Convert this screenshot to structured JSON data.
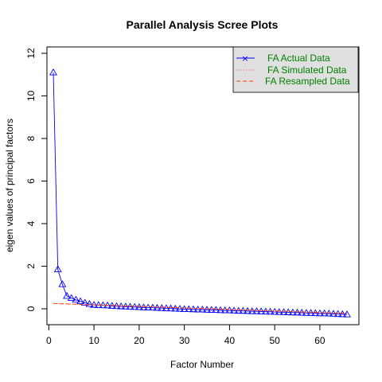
{
  "chart_data": {
    "type": "line",
    "title": "Parallel Analysis Scree Plots",
    "xlabel": "Factor Number",
    "ylabel": "eigen values of principal factors",
    "xlim": [
      1,
      66
    ],
    "ylim": [
      -0.45,
      12.3
    ],
    "xticks": [
      0,
      10,
      20,
      30,
      40,
      50,
      60
    ],
    "yticks": [
      0,
      2,
      4,
      6,
      8,
      10,
      12
    ],
    "legend_position": "top-right",
    "colors": {
      "actual": "#0000ff",
      "simulated": "#ff6666",
      "resampled": "#ff4500",
      "legend_text": "#008000",
      "legend_bg": "#e0e0e0"
    },
    "series": [
      {
        "name": "FA  Actual Data",
        "style": "line-triangles",
        "x": [
          1,
          2,
          3,
          4,
          5,
          6,
          7,
          8,
          9,
          10,
          11,
          12,
          13,
          14,
          15,
          16,
          17,
          18,
          19,
          20,
          21,
          22,
          23,
          24,
          25,
          26,
          27,
          28,
          29,
          30,
          31,
          32,
          33,
          34,
          35,
          36,
          37,
          38,
          39,
          40,
          41,
          42,
          43,
          44,
          45,
          46,
          47,
          48,
          49,
          50,
          51,
          52,
          53,
          54,
          55,
          56,
          57,
          58,
          59,
          60,
          61,
          62,
          63,
          64,
          65,
          66
        ],
        "values": [
          11.1,
          1.85,
          1.15,
          0.6,
          0.5,
          0.42,
          0.35,
          0.28,
          0.22,
          0.18,
          0.17,
          0.16,
          0.15,
          0.13,
          0.12,
          0.11,
          0.1,
          0.09,
          0.08,
          0.07,
          0.06,
          0.05,
          0.05,
          0.04,
          0.03,
          0.02,
          0.01,
          0.0,
          -0.01,
          -0.02,
          -0.02,
          -0.03,
          -0.04,
          -0.04,
          -0.05,
          -0.06,
          -0.06,
          -0.07,
          -0.08,
          -0.08,
          -0.09,
          -0.1,
          -0.1,
          -0.11,
          -0.12,
          -0.12,
          -0.13,
          -0.14,
          -0.14,
          -0.15,
          -0.16,
          -0.16,
          -0.17,
          -0.18,
          -0.18,
          -0.19,
          -0.2,
          -0.2,
          -0.21,
          -0.22,
          -0.22,
          -0.23,
          -0.24,
          -0.25,
          -0.26,
          -0.27
        ]
      },
      {
        "name": "FA  Simulated Data",
        "style": "dotted",
        "x": [
          1,
          66
        ],
        "values": [
          0.25,
          -0.23
        ]
      },
      {
        "name": "FA  Resampled Data",
        "style": "dashed",
        "x": [
          1,
          66
        ],
        "values": [
          0.25,
          -0.22
        ]
      }
    ]
  }
}
